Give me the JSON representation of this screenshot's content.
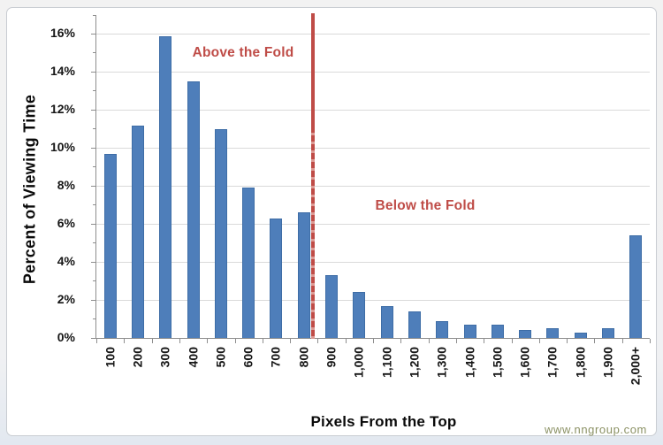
{
  "credit": "www.nngroup.com",
  "chart_data": {
    "type": "bar",
    "title": "",
    "xlabel": "Pixels From the Top",
    "ylabel": "Percent of Viewing Time",
    "categories": [
      "100",
      "200",
      "300",
      "400",
      "500",
      "600",
      "700",
      "800",
      "900",
      "1,000",
      "1,100",
      "1,200",
      "1,300",
      "1,400",
      "1,500",
      "1,600",
      "1,700",
      "1,800",
      "1,900",
      "2,000+"
    ],
    "values": [
      9.7,
      11.2,
      15.9,
      13.5,
      11.0,
      7.9,
      6.3,
      6.6,
      3.3,
      2.4,
      1.7,
      1.4,
      0.9,
      0.7,
      0.7,
      0.4,
      0.5,
      0.3,
      0.5,
      5.4
    ],
    "ylim": [
      0,
      17
    ],
    "y_tick_labels": [
      "0%",
      "2%",
      "4%",
      "6%",
      "8%",
      "10%",
      "12%",
      "14%",
      "16%"
    ],
    "grid": "horizontal-major",
    "legend": "none",
    "fold": {
      "position_after_category": "800",
      "label_above": "Above the Fold",
      "label_below": "Below the Fold"
    },
    "colors": {
      "bar_fill": "#4e7eba",
      "bar_border": "#3e6da6",
      "gridline": "#dadada",
      "axis": "#8e8e8e",
      "fold_line": "#bf4c47",
      "fold_dash_gap": "#dd9a94",
      "annotation": "#bf4c47",
      "credit": "#8b9164"
    }
  }
}
